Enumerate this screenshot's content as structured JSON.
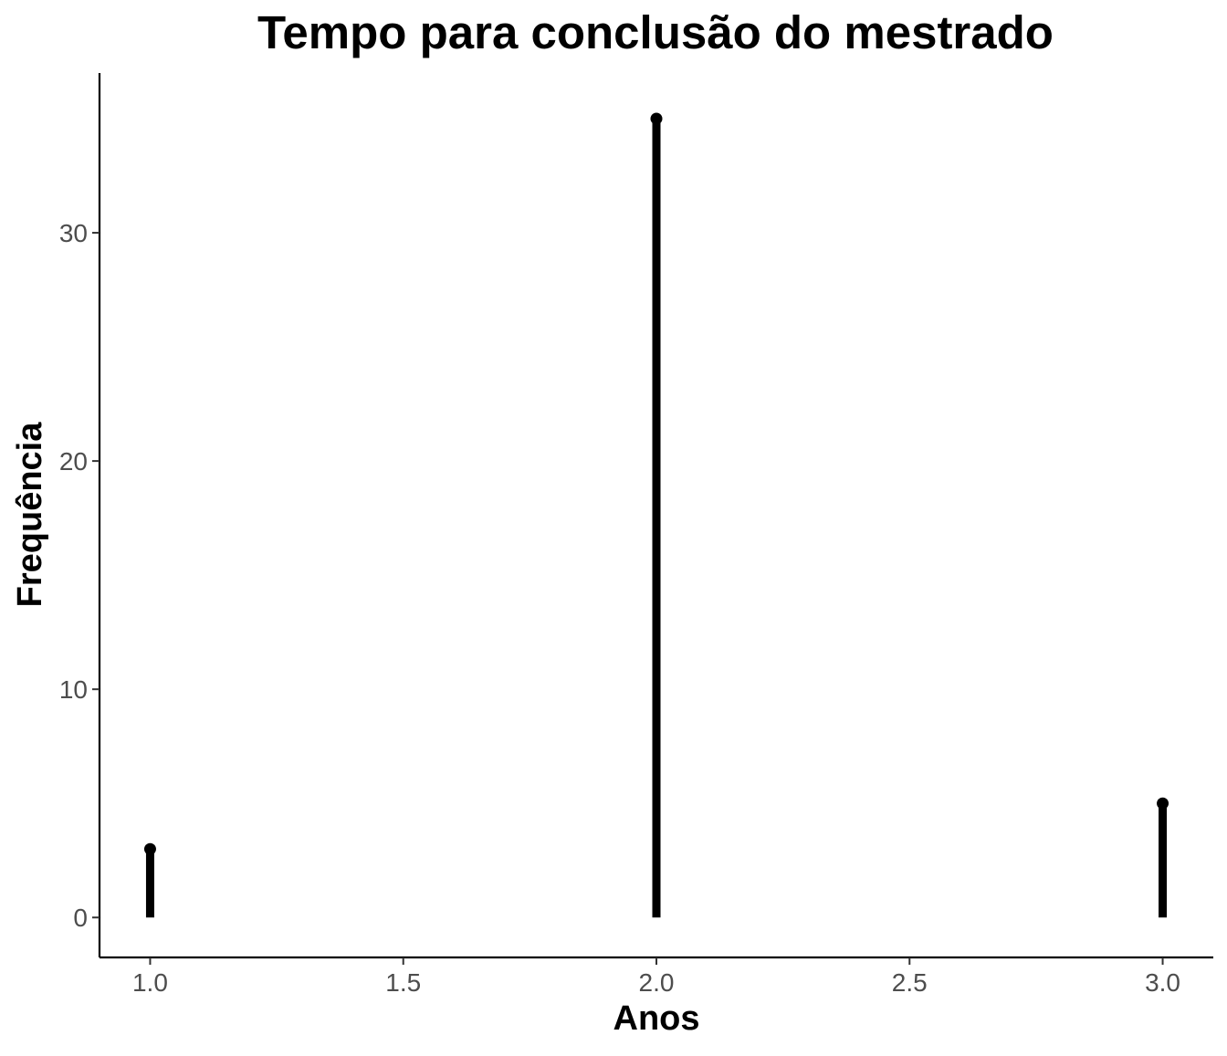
{
  "chart_data": {
    "type": "lollipop",
    "title": "Tempo para conclusão do mestrado",
    "xlabel": "Anos",
    "ylabel": "Frequência",
    "x": [
      1,
      2,
      3
    ],
    "values": [
      3,
      35,
      5
    ],
    "xlim": [
      0.9,
      3.1
    ],
    "ylim": [
      -1.75,
      37
    ],
    "xticks": [
      1.0,
      1.5,
      2.0,
      2.5,
      3.0
    ],
    "xtick_labels": [
      "1.0",
      "1.5",
      "2.0",
      "2.5",
      "3.0"
    ],
    "yticks": [
      0,
      10,
      20,
      30
    ],
    "ytick_labels": [
      "0",
      "10",
      "20",
      "30"
    ],
    "grid": false,
    "legend": "none",
    "colors": {
      "stem": "#000000",
      "axis": "#000000",
      "tick_text": "#4d4d4d"
    }
  }
}
